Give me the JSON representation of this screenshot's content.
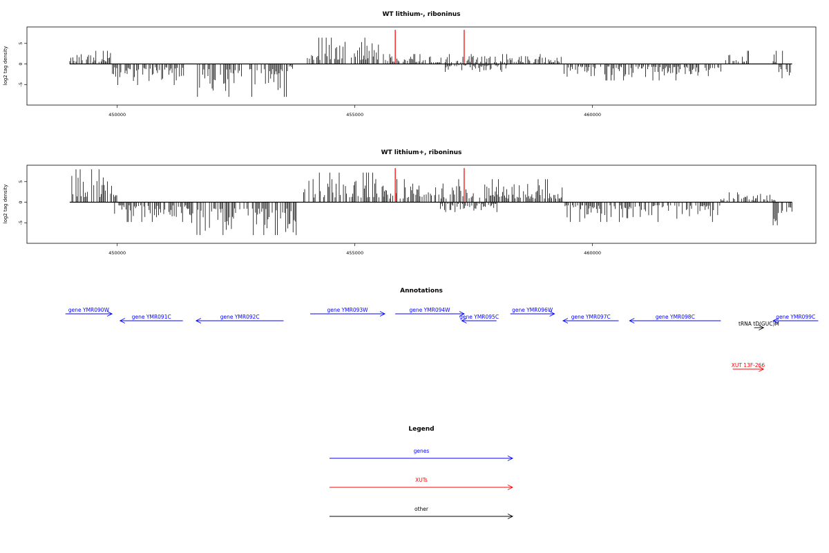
{
  "chart_data": [
    {
      "type": "bar",
      "title": "WT lithium-, riboninus",
      "ylabel": "log2 tag density",
      "xlim": [
        448100,
        464700
      ],
      "ylim": [
        -10,
        9
      ],
      "x_ticks": [
        450000,
        455000,
        460000
      ],
      "y_ticks": [
        -5,
        0,
        5
      ],
      "red_marks": [
        455850,
        457300
      ],
      "segments": [
        {
          "from": 449000,
          "to": 449900,
          "sign": 1,
          "level": 2.0
        },
        {
          "from": 449900,
          "to": 451400,
          "sign": -1,
          "level": 3.2
        },
        {
          "from": 451600,
          "to": 453600,
          "sign": -1,
          "level": 5.0
        },
        {
          "from": 453600,
          "to": 453700,
          "sign": -1,
          "level": 1.5
        },
        {
          "from": 454000,
          "to": 455500,
          "sign": 1,
          "level": 4.0
        },
        {
          "from": 455600,
          "to": 459400,
          "sign": 1,
          "level": 1.5
        },
        {
          "from": 456900,
          "to": 458200,
          "sign": -1,
          "level": 1.2
        },
        {
          "from": 459400,
          "to": 462700,
          "sign": -1,
          "level": 2.5
        },
        {
          "from": 462800,
          "to": 463300,
          "sign": 1,
          "level": 2.0
        },
        {
          "from": 463800,
          "to": 464000,
          "sign": 1,
          "level": 2.0
        },
        {
          "from": 463900,
          "to": 464200,
          "sign": -1,
          "level": 2.8
        }
      ]
    },
    {
      "type": "bar",
      "title": "WT lithium+, riboninus",
      "ylabel": "log2 tag density",
      "xlim": [
        448100,
        464700
      ],
      "ylim": [
        -10,
        9
      ],
      "x_ticks": [
        450000,
        455000,
        460000
      ],
      "y_ticks": [
        -5,
        0,
        5
      ],
      "red_marks": [
        455850,
        457300
      ],
      "segments": [
        {
          "from": 449000,
          "to": 450000,
          "sign": 1,
          "level": 5.0
        },
        {
          "from": 449900,
          "to": 451500,
          "sign": -1,
          "level": 3.0
        },
        {
          "from": 451500,
          "to": 453800,
          "sign": -1,
          "level": 6.0
        },
        {
          "from": 453900,
          "to": 455600,
          "sign": 1,
          "level": 4.5
        },
        {
          "from": 455600,
          "to": 459400,
          "sign": 1,
          "level": 3.5
        },
        {
          "from": 456800,
          "to": 458000,
          "sign": -1,
          "level": 1.5
        },
        {
          "from": 459400,
          "to": 462700,
          "sign": -1,
          "level": 3.0
        },
        {
          "from": 462700,
          "to": 463900,
          "sign": 1,
          "level": 1.5
        },
        {
          "from": 463800,
          "to": 464200,
          "sign": -1,
          "level": 3.5
        }
      ]
    }
  ],
  "annotations": {
    "title": "Annotations",
    "items": [
      {
        "label": "gene YMR090W",
        "color": "#0000ff",
        "dir": "right",
        "start": 448910,
        "end": 449890,
        "row": 0
      },
      {
        "label": "gene YMR091C",
        "color": "#0000ff",
        "dir": "left",
        "start": 450060,
        "end": 451380,
        "row": 1
      },
      {
        "label": "gene YMR092C",
        "color": "#0000ff",
        "dir": "left",
        "start": 451660,
        "end": 453500,
        "row": 1
      },
      {
        "label": "gene YMR093W",
        "color": "#0000ff",
        "dir": "right",
        "start": 454060,
        "end": 455630,
        "row": 0
      },
      {
        "label": "gene YMR094W",
        "color": "#0000ff",
        "dir": "right",
        "start": 455850,
        "end": 457300,
        "row": 0
      },
      {
        "label": "gene YMR095C",
        "color": "#0000ff",
        "dir": "left",
        "start": 457250,
        "end": 457980,
        "row": 1
      },
      {
        "label": "gene YMR096W",
        "color": "#0000ff",
        "dir": "right",
        "start": 458270,
        "end": 459200,
        "row": 0
      },
      {
        "label": "gene YMR097C",
        "color": "#0000ff",
        "dir": "left",
        "start": 459380,
        "end": 460550,
        "row": 1
      },
      {
        "label": "gene YMR098C",
        "color": "#0000ff",
        "dir": "left",
        "start": 460780,
        "end": 462700,
        "row": 1
      },
      {
        "label": "gene YMR099C",
        "color": "#0000ff",
        "dir": "left",
        "start": 463800,
        "end": 464750,
        "row": 1
      },
      {
        "label": "tRNA tD(GUC)M",
        "color": "#000000",
        "dir": "right",
        "start": 463400,
        "end": 463600,
        "row": 2
      },
      {
        "label": "XUT 13F-266",
        "color": "#ff0000",
        "dir": "right",
        "start": 462950,
        "end": 463600,
        "row": 4
      }
    ]
  },
  "legend": {
    "title": "Legend",
    "items": [
      {
        "label": "genes",
        "color": "#0000ff"
      },
      {
        "label": "XUTs",
        "color": "#ff0000"
      },
      {
        "label": "other",
        "color": "#000000"
      }
    ]
  }
}
